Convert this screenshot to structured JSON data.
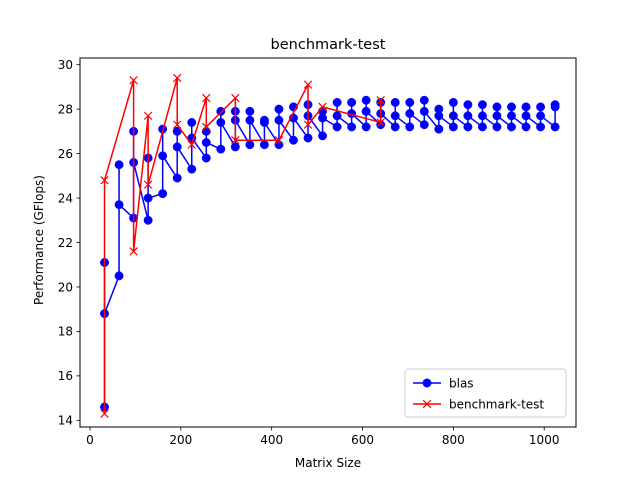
{
  "chart_data": {
    "type": "line",
    "title": "benchmark-test",
    "xlabel": "Matrix Size",
    "ylabel": "Performance (GFlops)",
    "xlim": [
      -22,
      1070
    ],
    "ylim": [
      13.7,
      30.3
    ],
    "xticks": [
      0,
      200,
      400,
      600,
      800,
      1000
    ],
    "yticks": [
      14,
      16,
      18,
      20,
      22,
      24,
      26,
      28,
      30
    ],
    "grid": false,
    "legend_position": "bottom-right",
    "series": [
      {
        "name": "blas",
        "color": "#0000ff",
        "marker": "circle",
        "x": [
          32,
          32,
          32,
          64,
          64,
          64,
          96,
          96,
          96,
          128,
          128,
          128,
          160,
          160,
          160,
          192,
          192,
          192,
          224,
          224,
          224,
          256,
          256,
          256,
          288,
          288,
          288,
          320,
          320,
          320,
          352,
          352,
          352,
          384,
          384,
          384,
          416,
          416,
          416,
          448,
          448,
          448,
          480,
          480,
          480,
          512,
          512,
          512,
          544,
          544,
          544,
          576,
          576,
          576,
          608,
          608,
          608,
          640,
          640,
          640,
          672,
          672,
          672,
          704,
          704,
          704,
          736,
          736,
          736,
          768,
          768,
          768,
          800,
          800,
          800,
          832,
          832,
          832,
          864,
          864,
          864,
          896,
          896,
          896,
          928,
          928,
          928,
          960,
          960,
          960,
          992,
          992,
          992,
          1024,
          1024,
          1024
        ],
        "y": [
          14.6,
          21.1,
          18.8,
          20.5,
          25.5,
          23.7,
          23.1,
          27.0,
          25.6,
          23.0,
          25.8,
          24.0,
          24.2,
          27.1,
          25.9,
          24.9,
          27.0,
          26.3,
          25.3,
          27.4,
          26.7,
          25.8,
          27.0,
          26.5,
          26.2,
          27.9,
          27.4,
          26.3,
          27.9,
          27.5,
          26.4,
          27.9,
          27.5,
          26.4,
          27.5,
          27.4,
          26.4,
          28.0,
          27.5,
          26.6,
          28.1,
          27.6,
          26.7,
          28.2,
          27.7,
          26.8,
          27.9,
          27.6,
          27.2,
          28.3,
          27.7,
          27.2,
          28.3,
          27.8,
          27.2,
          28.4,
          27.9,
          27.3,
          28.3,
          27.8,
          27.2,
          28.3,
          27.7,
          27.2,
          28.3,
          27.8,
          27.3,
          28.4,
          27.9,
          27.1,
          28.0,
          27.7,
          27.2,
          28.3,
          27.7,
          27.2,
          28.2,
          27.7,
          27.2,
          28.2,
          27.7,
          27.2,
          28.1,
          27.7,
          27.2,
          28.1,
          27.7,
          27.2,
          28.1,
          27.7,
          27.2,
          28.1,
          27.7,
          27.2,
          28.2,
          28.1
        ]
      },
      {
        "name": "benchmark-test",
        "color": "#ff0000",
        "marker": "x",
        "x": [
          32,
          32,
          96,
          96,
          128,
          128,
          192,
          192,
          224,
          256,
          256,
          320,
          320,
          416,
          480,
          480,
          512,
          640,
          640
        ],
        "y": [
          14.3,
          24.8,
          29.3,
          21.6,
          27.7,
          24.6,
          29.4,
          27.3,
          26.4,
          28.5,
          27.2,
          28.5,
          26.6,
          26.6,
          29.1,
          27.3,
          28.1,
          27.4,
          28.4
        ]
      }
    ]
  }
}
